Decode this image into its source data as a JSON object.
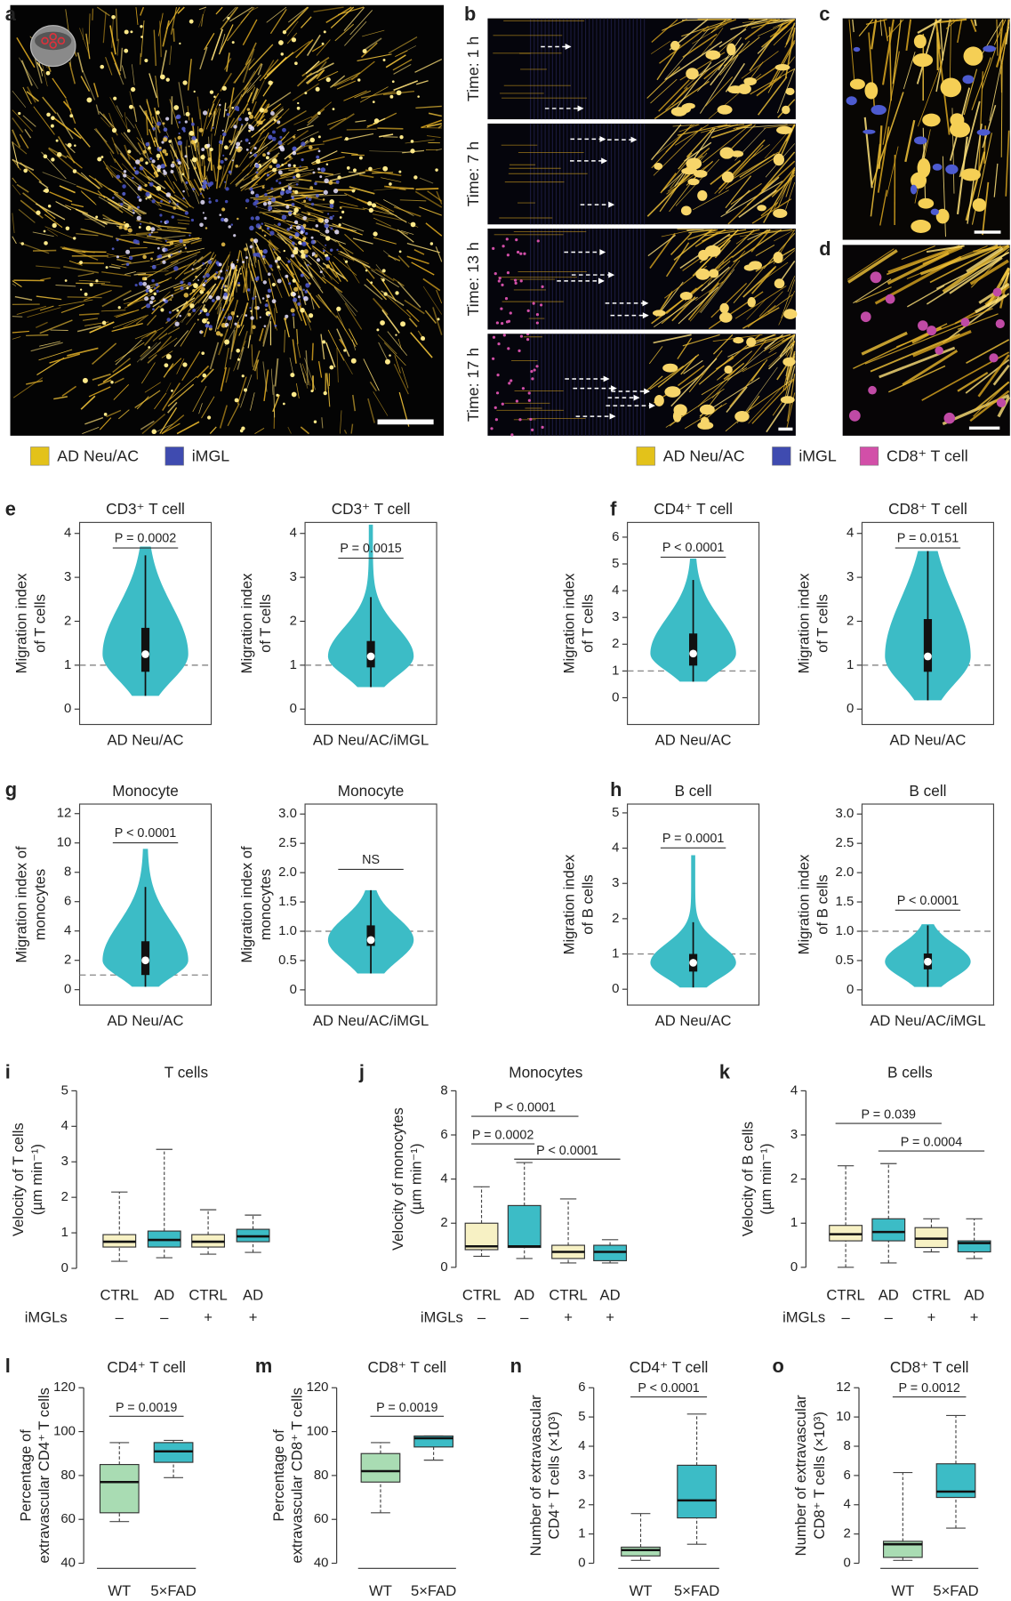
{
  "figure": {
    "panel_labels": [
      "a",
      "b",
      "c",
      "d",
      "e",
      "f",
      "g",
      "h",
      "i",
      "j",
      "k",
      "l",
      "m",
      "n",
      "o"
    ],
    "time_labels": [
      "Time: 1 h",
      "Time: 7 h",
      "Time: 13 h",
      "Time: 17 h"
    ],
    "legend_a": [
      {
        "label": "AD Neu/AC",
        "color": "#e3c21a"
      },
      {
        "label": "iMGL",
        "color": "#3f4bb0"
      }
    ],
    "legend_b": [
      {
        "label": "AD Neu/AC",
        "color": "#e3c21a"
      },
      {
        "label": "iMGL",
        "color": "#3f4bb0"
      },
      {
        "label": "CD8⁺ T cell",
        "color": "#d24fa8"
      }
    ]
  },
  "chart_data": [
    {
      "type": "violin",
      "title": "CD3⁺ T cell",
      "ylabel": [
        "Migration index",
        "of T cells"
      ],
      "categories": [
        "AD Neu/AC"
      ],
      "ylim": [
        -0.35,
        4.25
      ],
      "yticks": [
        0,
        1,
        2,
        3,
        4
      ],
      "reference_line": 1,
      "color": "#3cbcc6",
      "min": 0.3,
      "max": 3.7,
      "whisker": [
        0.3,
        3.5
      ],
      "q1": 0.85,
      "median": 1.25,
      "q3": 1.85,
      "annotation": "P = 0.0002"
    },
    {
      "type": "violin",
      "title": "CD3⁺ T cell",
      "ylabel": [
        "Migration index",
        "of T cells"
      ],
      "categories": [
        "AD Neu/AC/iMGL"
      ],
      "ylim": [
        -0.35,
        4.25
      ],
      "yticks": [
        0,
        1,
        2,
        3,
        4
      ],
      "reference_line": 1,
      "color": "#3cbcc6",
      "min": 0.5,
      "max": 4.2,
      "whisker": [
        0.5,
        2.55
      ],
      "q1": 0.95,
      "median": 1.2,
      "q3": 1.55,
      "annotation": "P = 0.0015"
    },
    {
      "type": "violin",
      "title": "CD4⁺ T cell",
      "ylabel": [
        "Migration index",
        "of T cells"
      ],
      "categories": [
        "AD Neu/AC"
      ],
      "ylim": [
        -1,
        6.55
      ],
      "yticks": [
        0,
        1,
        2,
        3,
        4,
        5,
        6
      ],
      "reference_line": 1,
      "color": "#3cbcc6",
      "min": 0.6,
      "max": 5.2,
      "whisker": [
        0.6,
        4.4
      ],
      "q1": 1.2,
      "median": 1.65,
      "q3": 2.4,
      "annotation": "P < 0.0001"
    },
    {
      "type": "violin",
      "title": "CD8⁺ T cell",
      "ylabel": [
        "Migration index",
        "of T cells"
      ],
      "categories": [
        "AD Neu/AC"
      ],
      "ylim": [
        -0.35,
        4.25
      ],
      "yticks": [
        0,
        1,
        2,
        3,
        4
      ],
      "reference_line": 1,
      "color": "#3cbcc6",
      "min": 0.2,
      "max": 3.6,
      "whisker": [
        0.2,
        3.6
      ],
      "q1": 0.85,
      "median": 1.2,
      "q3": 2.05,
      "annotation": "P = 0.0151"
    },
    {
      "type": "violin",
      "title": "Monocyte",
      "ylabel": [
        "Migration index of",
        "monocytes"
      ],
      "categories": [
        "AD Neu/AC"
      ],
      "ylim": [
        -1.05,
        12.65
      ],
      "yticks": [
        0,
        2,
        4,
        6,
        8,
        10,
        12
      ],
      "reference_line": 1,
      "color": "#3cbcc6",
      "min": 0.2,
      "max": 9.6,
      "whisker": [
        0.2,
        7
      ],
      "q1": 1,
      "median": 2,
      "q3": 3.3,
      "annotation": "P < 0.0001"
    },
    {
      "type": "violin",
      "title": "Monocyte",
      "ylabel": [
        "Migration index of",
        "monocytes"
      ],
      "categories": [
        "AD Neu/AC/iMGL"
      ],
      "ylim": [
        -0.26,
        3.17
      ],
      "yticks": [
        0,
        0.5,
        {
          "value": 1,
          "label": "1.0"
        },
        1.5,
        {
          "value": 2,
          "label": "2.0"
        },
        2.5,
        {
          "value": 3,
          "label": "3.0"
        }
      ],
      "reference_line": 1,
      "color": "#3cbcc6",
      "min": 0.28,
      "max": 1.7,
      "whisker": [
        0.28,
        1.7
      ],
      "q1": 0.75,
      "median": 0.85,
      "q3": 1.1,
      "annotation": "NS"
    },
    {
      "type": "violin",
      "title": "B cell",
      "ylabel": [
        "Migration index",
        "of B cells"
      ],
      "categories": [
        "AD Neu/AC"
      ],
      "ylim": [
        -0.45,
        5.25
      ],
      "yticks": [
        0,
        1,
        2,
        3,
        4,
        5
      ],
      "reference_line": 1,
      "color": "#3cbcc6",
      "min": 0.05,
      "max": 3.8,
      "whisker": [
        0.05,
        1.9
      ],
      "q1": 0.5,
      "median": 0.75,
      "q3": 1,
      "annotation": "P = 0.0001"
    },
    {
      "type": "violin",
      "title": "B cell",
      "ylabel": [
        "Migration index",
        "of B cells"
      ],
      "categories": [
        "AD Neu/AC/iMGL"
      ],
      "ylim": [
        -0.26,
        3.17
      ],
      "yticks": [
        0,
        0.5,
        {
          "value": 1,
          "label": "1.0"
        },
        1.5,
        {
          "value": 2,
          "label": "2.0"
        },
        2.5,
        {
          "value": 3,
          "label": "3.0"
        }
      ],
      "reference_line": 1,
      "color": "#3cbcc6",
      "min": 0.05,
      "max": 1.12,
      "whisker": [
        0.05,
        1.1
      ],
      "q1": 0.35,
      "median": 0.48,
      "q3": 0.62,
      "annotation": "P < 0.0001"
    },
    {
      "type": "box",
      "title": "T cells",
      "ylabel": [
        "Velocity of T cells",
        "(µm min⁻¹)"
      ],
      "categories": [
        "CTRL",
        "AD",
        "CTRL",
        "AD"
      ],
      "group_label": "iMGLs",
      "groups": [
        "–",
        "–",
        "+",
        "+"
      ],
      "ylim": [
        0,
        5
      ],
      "yticks": [
        0,
        1,
        2,
        3,
        4,
        5
      ],
      "colors": [
        "#f7f1c4",
        "#3cbcc6",
        "#f7f1c4",
        "#3cbcc6"
      ],
      "boxes": [
        {
          "min": 0.2,
          "q1": 0.6,
          "median": 0.75,
          "q3": 0.95,
          "max": 2.15
        },
        {
          "min": 0.3,
          "q1": 0.6,
          "median": 0.8,
          "q3": 1.05,
          "max": 3.35
        },
        {
          "min": 0.4,
          "q1": 0.6,
          "median": 0.75,
          "q3": 0.95,
          "max": 1.65
        },
        {
          "min": 0.45,
          "q1": 0.75,
          "median": 0.9,
          "q3": 1.1,
          "max": 1.5
        }
      ],
      "annotations": []
    },
    {
      "type": "box",
      "title": "Monocytes",
      "ylabel": [
        "Velocity of monocytes",
        "(µm min⁻¹)"
      ],
      "categories": [
        "CTRL",
        "AD",
        "CTRL",
        "AD"
      ],
      "group_label": "iMGLs",
      "groups": [
        "–",
        "–",
        "+",
        "+"
      ],
      "ylim": [
        0,
        8
      ],
      "yticks": [
        0,
        2,
        4,
        6,
        8
      ],
      "colors": [
        "#f7f1c4",
        "#3cbcc6",
        "#f7f1c4",
        "#3cbcc6"
      ],
      "boxes": [
        {
          "min": 0.5,
          "q1": 0.8,
          "median": 0.95,
          "q3": 2,
          "max": 3.65
        },
        {
          "min": 0.4,
          "q1": 0.9,
          "median": 0.95,
          "q3": 2.8,
          "max": 4.75
        },
        {
          "min": 0.2,
          "q1": 0.4,
          "median": 0.7,
          "q3": 1,
          "max": 3.1
        },
        {
          "min": 0.2,
          "q1": 0.3,
          "median": 0.7,
          "q3": 1,
          "max": 1.25
        }
      ],
      "annotations": [
        "P < 0.0001",
        "P = 0.0002",
        "P < 0.0001"
      ]
    },
    {
      "type": "box",
      "title": "B cells",
      "ylabel": [
        "Velocity of B cells",
        "(µm min⁻¹)"
      ],
      "categories": [
        "CTRL",
        "AD",
        "CTRL",
        "AD"
      ],
      "group_label": "iMGLs",
      "groups": [
        "–",
        "–",
        "+",
        "+"
      ],
      "ylim": [
        0,
        4
      ],
      "yticks": [
        0,
        1,
        2,
        3,
        4
      ],
      "colors": [
        "#f7f1c4",
        "#3cbcc6",
        "#f7f1c4",
        "#3cbcc6"
      ],
      "boxes": [
        {
          "min": 0,
          "q1": 0.6,
          "median": 0.75,
          "q3": 0.95,
          "max": 2.3
        },
        {
          "min": 0.1,
          "q1": 0.6,
          "median": 0.8,
          "q3": 1.1,
          "max": 2.35
        },
        {
          "min": 0.35,
          "q1": 0.45,
          "median": 0.65,
          "q3": 0.9,
          "max": 1.1
        },
        {
          "min": 0.2,
          "q1": 0.35,
          "median": 0.55,
          "q3": 0.6,
          "max": 1.1
        }
      ],
      "annotations": [
        "P = 0.039",
        "P = 0.0004"
      ]
    },
    {
      "type": "box",
      "title": "CD4⁺ T cell",
      "ylabel": [
        "Percentage of",
        "extravascular CD4⁺ T cells"
      ],
      "categories": [
        "WT",
        "5×FAD"
      ],
      "ylim": [
        40,
        120
      ],
      "yticks": [
        40,
        60,
        80,
        100,
        120
      ],
      "colors": [
        "#a9dcb3",
        "#3cbcc6"
      ],
      "boxes": [
        {
          "min": 59,
          "q1": 63,
          "median": 77,
          "q3": 85,
          "max": 95
        },
        {
          "min": 79,
          "q1": 86,
          "median": 91,
          "q3": 95,
          "max": 96
        }
      ],
      "annotations": [
        "P = 0.0019"
      ]
    },
    {
      "type": "box",
      "title": "CD8⁺ T cell",
      "ylabel": [
        "Percentage of",
        "extravascular CD8⁺ T cells"
      ],
      "categories": [
        "WT",
        "5×FAD"
      ],
      "ylim": [
        40,
        120
      ],
      "yticks": [
        40,
        60,
        80,
        100,
        120
      ],
      "colors": [
        "#a9dcb3",
        "#3cbcc6"
      ],
      "boxes": [
        {
          "min": 63,
          "q1": 77,
          "median": 82,
          "q3": 90,
          "max": 95
        },
        {
          "min": 87,
          "q1": 93,
          "median": 97,
          "q3": 98,
          "max": 98
        }
      ],
      "annotations": [
        "P = 0.0019"
      ]
    },
    {
      "type": "box",
      "title": "CD4⁺ T cell",
      "ylabel": [
        "Number of extravascular",
        "CD4⁺ T cells (×10³)"
      ],
      "categories": [
        "WT",
        "5×FAD"
      ],
      "ylim": [
        0,
        6
      ],
      "yticks": [
        0,
        1,
        2,
        3,
        4,
        5,
        6
      ],
      "colors": [
        "#a9dcb3",
        "#3cbcc6"
      ],
      "boxes": [
        {
          "min": 0.1,
          "q1": 0.25,
          "median": 0.45,
          "q3": 0.55,
          "max": 1.7
        },
        {
          "min": 0.65,
          "q1": 1.55,
          "median": 2.15,
          "q3": 3.35,
          "max": 5.1
        }
      ],
      "annotations": [
        "P < 0.0001"
      ]
    },
    {
      "type": "box",
      "title": "CD8⁺ T cell",
      "ylabel": [
        "Number of extravascular",
        "CD8⁺ T cells (×10³)"
      ],
      "categories": [
        "WT",
        "5×FAD"
      ],
      "ylim": [
        0,
        12
      ],
      "yticks": [
        0,
        2,
        4,
        6,
        8,
        10,
        12
      ],
      "colors": [
        "#a9dcb3",
        "#3cbcc6"
      ],
      "boxes": [
        {
          "min": 0.2,
          "q1": 0.4,
          "median": 1.3,
          "q3": 1.5,
          "max": 6.2
        },
        {
          "min": 2.4,
          "q1": 4.5,
          "median": 4.9,
          "q3": 6.8,
          "max": 10.1
        }
      ],
      "annotations": [
        "P = 0.0012"
      ]
    }
  ]
}
